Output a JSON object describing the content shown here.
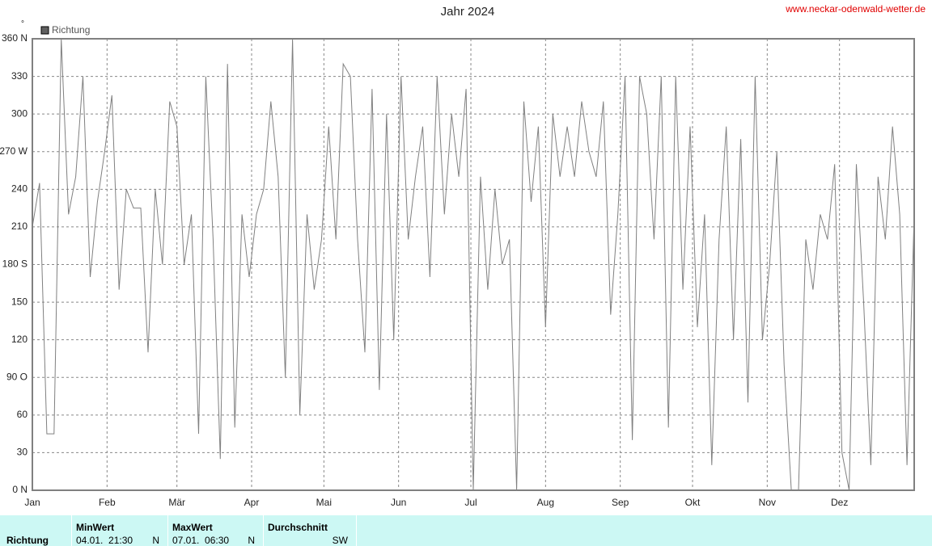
{
  "header": {
    "site": "www.neckar-odenwald-wetter.de"
  },
  "chart_data": {
    "type": "line",
    "title": "Jahr 2024",
    "y_unit": "°",
    "x": [
      0,
      3,
      6,
      9,
      12,
      15,
      18,
      21,
      24,
      27,
      30,
      33,
      36,
      39,
      42,
      45,
      48,
      51,
      54,
      57,
      60,
      63,
      66,
      69,
      72,
      75,
      78,
      81,
      84,
      87,
      90,
      93,
      96,
      99,
      102,
      105,
      108,
      111,
      114,
      117,
      120,
      123,
      126,
      129,
      132,
      135,
      138,
      141,
      144,
      147,
      150,
      153,
      156,
      159,
      162,
      165,
      168,
      171,
      174,
      177,
      180,
      183,
      186,
      189,
      192,
      195,
      198,
      201,
      204,
      207,
      210,
      213,
      216,
      219,
      222,
      225,
      228,
      231,
      234,
      237,
      240,
      243,
      246,
      249,
      252,
      255,
      258,
      261,
      264,
      267,
      270,
      273,
      276,
      279,
      282,
      285,
      288,
      291,
      294,
      297,
      300,
      303,
      306,
      309,
      312,
      315,
      318,
      321,
      324,
      327,
      330,
      333,
      336,
      339,
      342,
      345,
      348,
      351,
      354,
      357,
      360,
      363,
      366
    ],
    "xlim": [
      0,
      366
    ],
    "xticks": [
      {
        "value": 0,
        "label": "Jan"
      },
      {
        "value": 31,
        "label": "Feb"
      },
      {
        "value": 60,
        "label": "Mär"
      },
      {
        "value": 91,
        "label": "Apr"
      },
      {
        "value": 121,
        "label": "Mai"
      },
      {
        "value": 152,
        "label": "Jun"
      },
      {
        "value": 182,
        "label": "Jul"
      },
      {
        "value": 213,
        "label": "Aug"
      },
      {
        "value": 244,
        "label": "Sep"
      },
      {
        "value": 274,
        "label": "Okt"
      },
      {
        "value": 305,
        "label": "Nov"
      },
      {
        "value": 335,
        "label": "Dez"
      }
    ],
    "ylim": [
      0,
      360
    ],
    "yticks": [
      {
        "value": 0,
        "label": "0 N"
      },
      30,
      60,
      {
        "value": 90,
        "label": "90 O"
      },
      120,
      150,
      {
        "value": 180,
        "label": "180 S"
      },
      210,
      240,
      {
        "value": 270,
        "label": "270 W"
      },
      300,
      330,
      {
        "value": 360,
        "label": "360 N"
      }
    ],
    "grid": true,
    "series": [
      {
        "name": "Richtung",
        "color": "#808080",
        "legend_color": "#606060",
        "values": [
          210,
          245,
          45,
          45,
          360,
          220,
          250,
          330,
          170,
          230,
          270,
          315,
          160,
          240,
          225,
          225,
          110,
          240,
          180,
          310,
          290,
          180,
          220,
          45,
          330,
          200,
          25,
          340,
          50,
          220,
          170,
          220,
          240,
          310,
          250,
          90,
          360,
          60,
          220,
          160,
          200,
          290,
          200,
          340,
          330,
          200,
          110,
          320,
          80,
          300,
          120,
          330,
          200,
          250,
          290,
          170,
          330,
          220,
          300,
          250,
          320,
          0,
          250,
          160,
          240,
          180,
          200,
          0,
          310,
          230,
          290,
          130,
          300,
          250,
          290,
          250,
          310,
          270,
          250,
          310,
          140,
          220,
          330,
          40,
          330,
          300,
          200,
          330,
          50,
          330,
          160,
          290,
          130,
          220,
          20,
          200,
          290,
          120,
          280,
          70,
          330,
          120,
          180,
          270,
          100,
          0,
          0,
          200,
          160,
          220,
          200,
          260,
          30,
          0,
          260,
          150,
          20,
          250,
          200,
          290,
          220,
          20,
          220
        ]
      }
    ]
  },
  "summary": {
    "row_label": "Richtung",
    "columns": [
      {
        "header": "MinWert",
        "time": "04.01.  21:30",
        "dir": "N"
      },
      {
        "header": "MaxWert",
        "time": "07.01.  06:30",
        "dir": "N"
      },
      {
        "header": "Durchschnitt",
        "dir": "SW"
      }
    ]
  }
}
